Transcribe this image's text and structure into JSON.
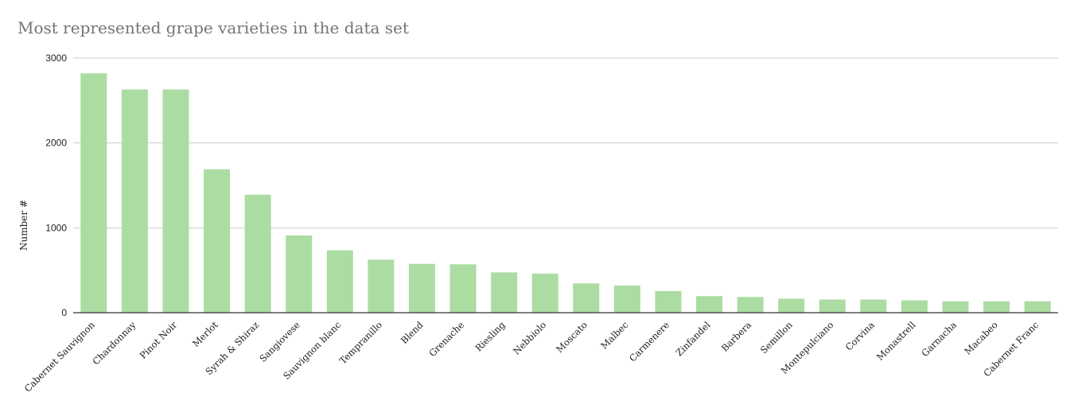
{
  "colors": {
    "bar": "#abdca2",
    "grid": "#cccccc",
    "axis": "#333333",
    "title": "#757575"
  },
  "chart_data": {
    "type": "bar",
    "title": "Most represented grape varieties in the data set",
    "xlabel": "",
    "ylabel": "Number #",
    "ylim": [
      0,
      3000
    ],
    "yticks": [
      0,
      1000,
      2000,
      3000
    ],
    "ytick_labels": [
      "0",
      "1000",
      "2000",
      "3000"
    ],
    "grid": true,
    "legend": "none",
    "categories": [
      "Cabernet Sauvignon",
      "Chardonnay",
      "Pinot Noir",
      "Merlot",
      "Syrah & Shiraz",
      "Sangiovese",
      "Sauvignon blanc",
      "Tempranillo",
      "Blend",
      "Grenache",
      "Riesling",
      "Nebbiolo",
      "Moscato",
      "Malbec",
      "Carmenere",
      "Zinfandel",
      "Barbera",
      "Semillon",
      "Montepulciano",
      "Corvina",
      "Monastrell",
      "Garnacha",
      "Macabeo",
      "Cabernet Franc"
    ],
    "values": [
      2820,
      2630,
      2630,
      1690,
      1390,
      910,
      735,
      625,
      575,
      570,
      475,
      460,
      345,
      320,
      255,
      195,
      185,
      165,
      155,
      155,
      145,
      135,
      135,
      135
    ]
  }
}
